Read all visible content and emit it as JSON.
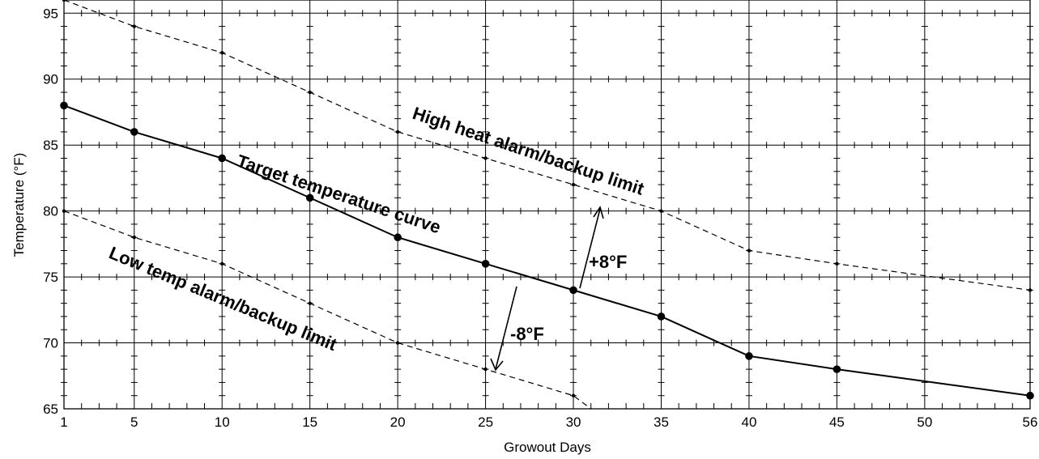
{
  "chart_data": {
    "type": "line",
    "xlabel": "Growout Days",
    "ylabel": "Temperature (°F)",
    "xlim": [
      1,
      56
    ],
    "ylim": [
      65,
      96
    ],
    "x_ticks": [
      1,
      5,
      10,
      15,
      20,
      25,
      30,
      35,
      40,
      45,
      50,
      56
    ],
    "y_ticks": [
      65,
      70,
      75,
      80,
      85,
      90,
      95
    ],
    "grid": true,
    "series": [
      {
        "name": "Target temperature curve",
        "style": "solid",
        "x": [
          1,
          5,
          10,
          15,
          20,
          25,
          30,
          35,
          40,
          45,
          56
        ],
        "y": [
          88,
          86,
          84,
          81,
          78,
          76,
          74,
          72,
          69,
          68,
          66
        ]
      },
      {
        "name": "High heat alarm/backup limit",
        "style": "dashed",
        "x": [
          1,
          5,
          10,
          15,
          20,
          25,
          30,
          35,
          40,
          45,
          56
        ],
        "y": [
          96,
          94,
          92,
          89,
          86,
          84,
          82,
          80,
          77,
          76,
          74
        ]
      },
      {
        "name": "Low temp alarm/backup limit",
        "style": "dashed",
        "x": [
          1,
          5,
          10,
          15,
          20,
          25,
          30,
          31
        ],
        "y": [
          80,
          78,
          76,
          73,
          70,
          68,
          66,
          65
        ]
      }
    ],
    "annotations": [
      {
        "text": "+8°F"
      },
      {
        "text": "-8°F"
      }
    ]
  }
}
